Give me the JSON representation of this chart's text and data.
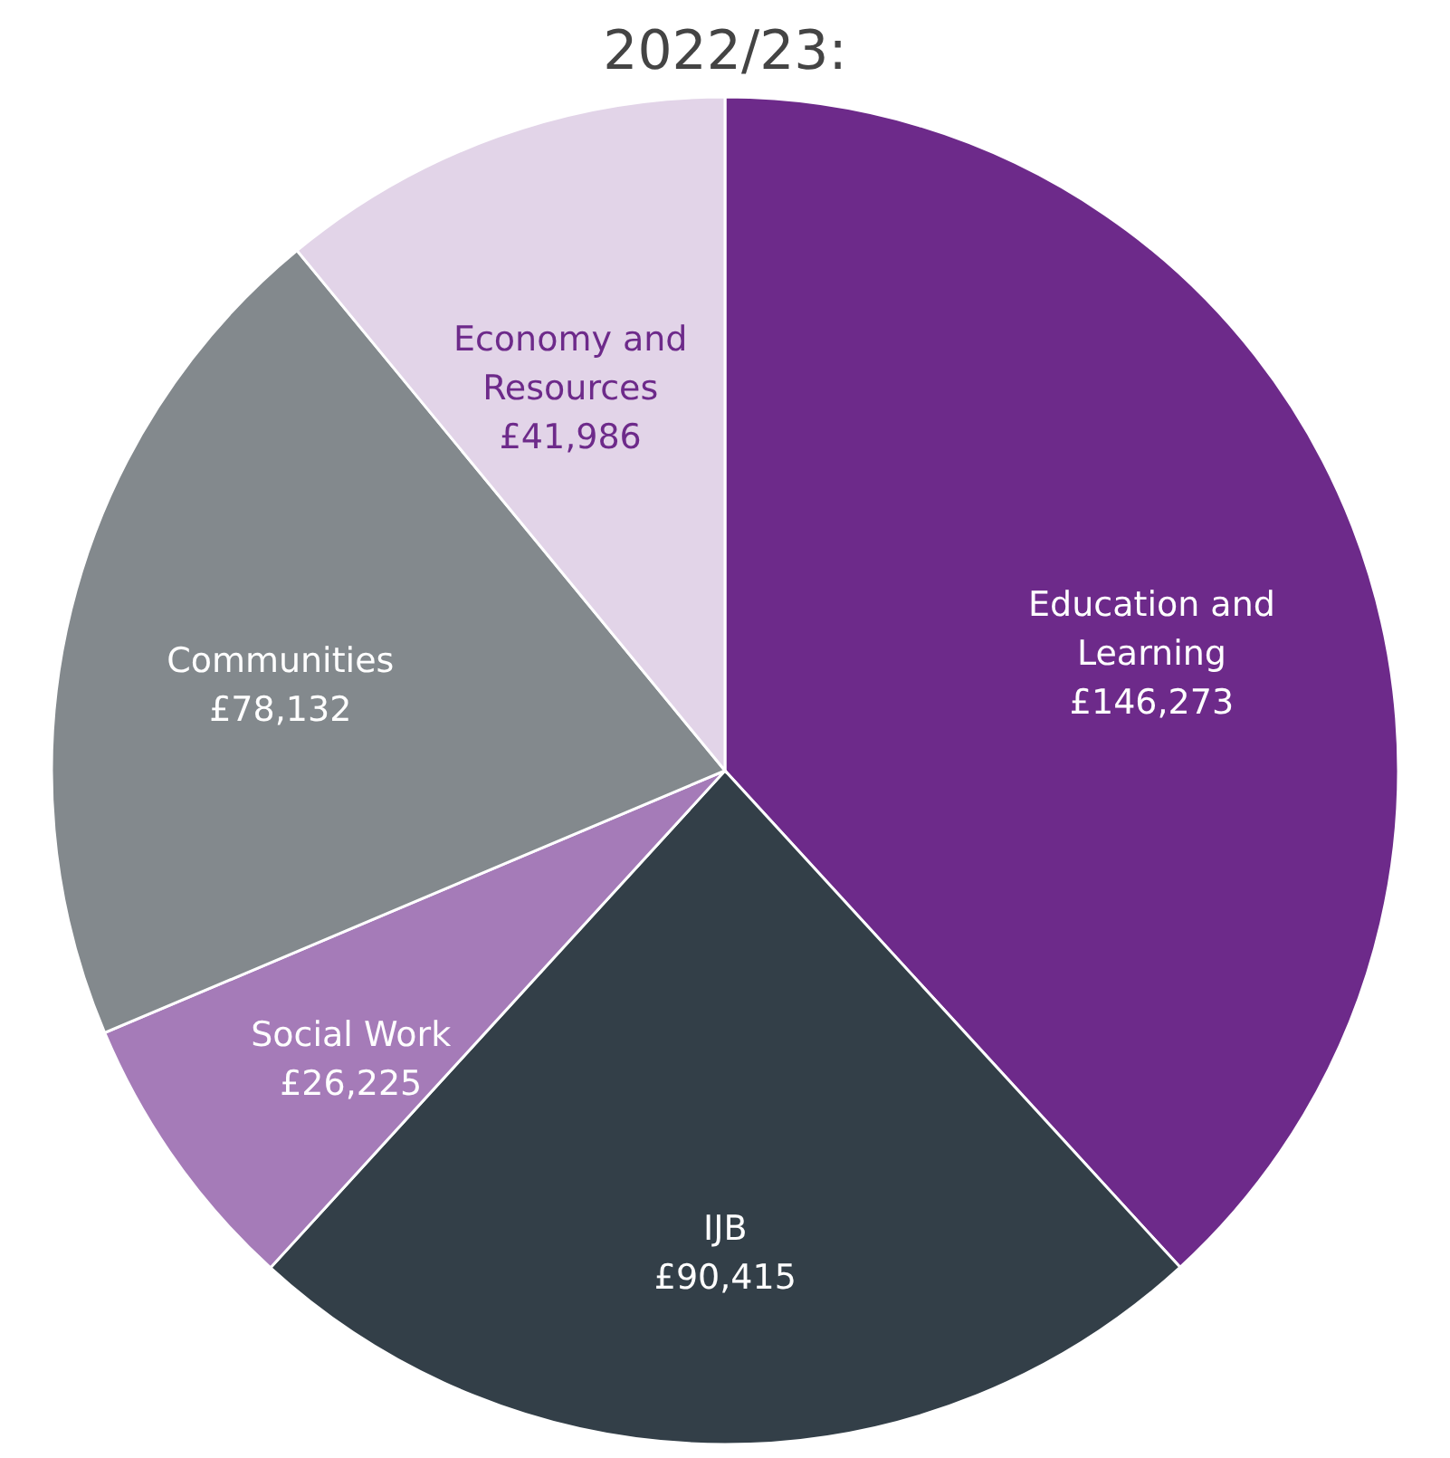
{
  "chart_data": {
    "type": "pie",
    "title": "2022/23:",
    "categories": [
      "Education and Learning",
      "IJB",
      "Social Work",
      "Communities",
      "Economy and Resources"
    ],
    "values": [
      146273,
      90415,
      26225,
      78132,
      41986
    ],
    "value_labels": [
      "£146,273",
      "£90,415",
      "£26,225",
      "£78,132",
      "£41,986"
    ],
    "colors": [
      "#6d2a8a",
      "#333f48",
      "#a57bb8",
      "#83898d",
      "#e2d4e8"
    ]
  }
}
